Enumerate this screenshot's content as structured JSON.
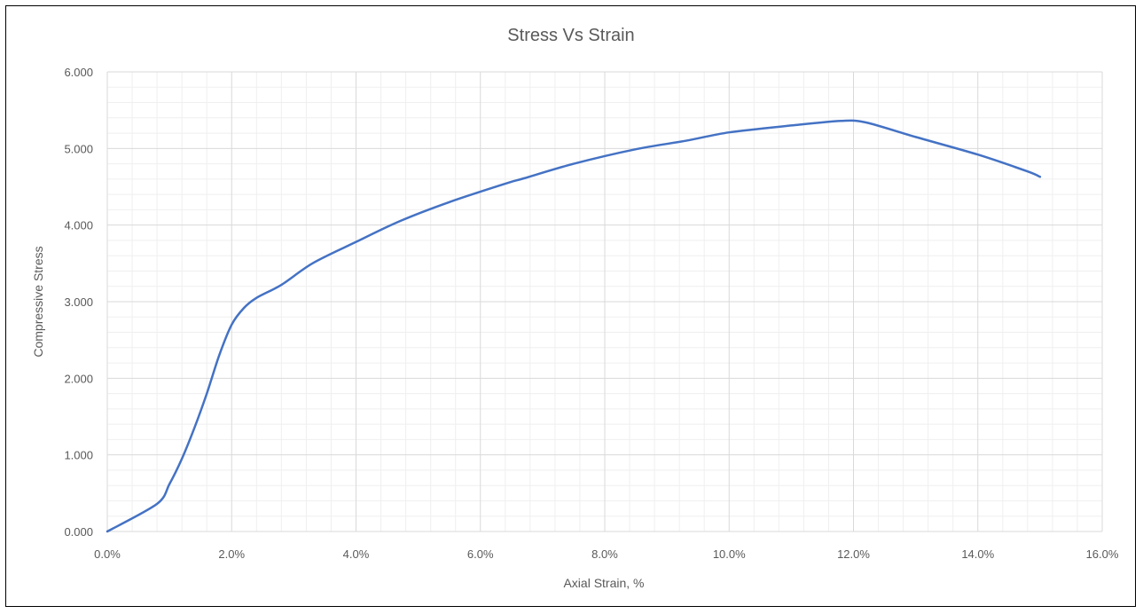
{
  "chart_data": {
    "type": "line",
    "title": "Stress Vs Strain",
    "xlabel": "Axial Strain, %",
    "ylabel": "Compressive Stress",
    "xlim": [
      0,
      0.16
    ],
    "ylim": [
      0,
      6
    ],
    "x_ticks": [
      0,
      0.02,
      0.04,
      0.06,
      0.08,
      0.1,
      0.12,
      0.14,
      0.16
    ],
    "x_tick_labels": [
      "0.0%",
      "2.0%",
      "4.0%",
      "6.0%",
      "8.0%",
      "10.0%",
      "12.0%",
      "14.0%",
      "16.0%"
    ],
    "y_ticks": [
      0,
      1,
      2,
      3,
      4,
      5,
      6
    ],
    "y_tick_labels": [
      "0.000",
      "1.000",
      "2.000",
      "3.000",
      "4.000",
      "5.000",
      "6.000"
    ],
    "grid": true,
    "minor_grid": true,
    "legend": "none",
    "series": [
      {
        "color": "#4472C4",
        "x": [
          0.0,
          0.008,
          0.01,
          0.012,
          0.014,
          0.016,
          0.018,
          0.02,
          0.022,
          0.024,
          0.028,
          0.033,
          0.04,
          0.047,
          0.055,
          0.064,
          0.067,
          0.075,
          0.085,
          0.093,
          0.1,
          0.11,
          0.118,
          0.122,
          0.13,
          0.14,
          0.148,
          0.15
        ],
        "y": [
          0.0,
          0.36,
          0.62,
          0.95,
          1.35,
          1.8,
          2.3,
          2.7,
          2.92,
          3.05,
          3.22,
          3.5,
          3.78,
          4.05,
          4.3,
          4.54,
          4.61,
          4.8,
          4.99,
          5.1,
          5.21,
          5.3,
          5.36,
          5.34,
          5.15,
          4.92,
          4.7,
          4.63
        ]
      }
    ]
  }
}
